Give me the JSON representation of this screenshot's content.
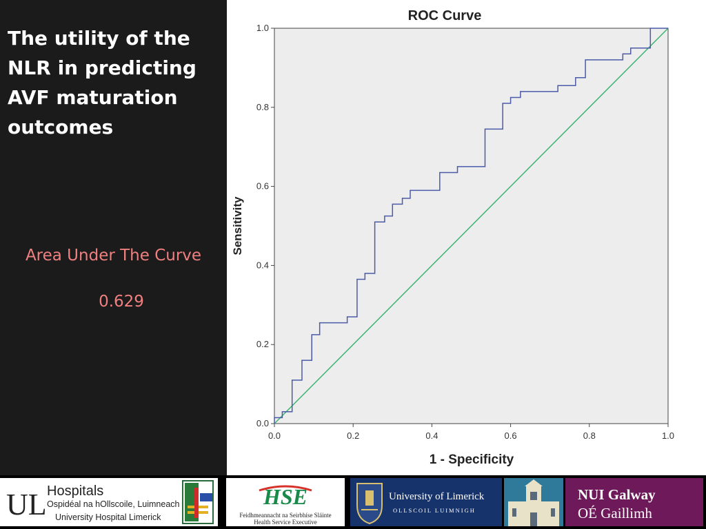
{
  "slide": {
    "title": "The utility of the NLR in predicting AVF maturation outcomes",
    "auc_label": "Area Under The Curve",
    "auc_value": "0.629"
  },
  "colors": {
    "background": "#1b1b1b",
    "title_text": "#ffffff",
    "auc_text": "#f08080",
    "plot_bg": "#ededed",
    "roc_line": "#4a5aa8",
    "reference_line": "#3cb371"
  },
  "chart_data": {
    "type": "line",
    "title": "ROC Curve",
    "xlabel": "1 - Specificity",
    "ylabel": "Sensitivity",
    "xlim": [
      0,
      1
    ],
    "ylim": [
      0,
      1
    ],
    "xticks": [
      "0.0",
      "0.2",
      "0.4",
      "0.6",
      "0.8",
      "1.0"
    ],
    "yticks": [
      "0.0",
      "0.2",
      "0.4",
      "0.6",
      "0.8",
      "1.0"
    ],
    "grid": false,
    "series": [
      {
        "role": "roc-curve",
        "x": [
          0,
          0,
          0.02,
          0.02,
          0.045,
          0.045,
          0.07,
          0.07,
          0.095,
          0.095,
          0.115,
          0.115,
          0.185,
          0.185,
          0.21,
          0.21,
          0.23,
          0.23,
          0.255,
          0.255,
          0.28,
          0.28,
          0.3,
          0.3,
          0.325,
          0.325,
          0.345,
          0.345,
          0.42,
          0.42,
          0.465,
          0.465,
          0.535,
          0.535,
          0.58,
          0.58,
          0.6,
          0.6,
          0.625,
          0.625,
          0.72,
          0.72,
          0.765,
          0.765,
          0.79,
          0.79,
          0.885,
          0.885,
          0.905,
          0.905,
          0.955,
          0.955,
          1.0
        ],
        "y": [
          0,
          0.015,
          0.015,
          0.03,
          0.03,
          0.11,
          0.11,
          0.16,
          0.16,
          0.225,
          0.225,
          0.255,
          0.255,
          0.27,
          0.27,
          0.365,
          0.365,
          0.38,
          0.38,
          0.51,
          0.51,
          0.525,
          0.525,
          0.555,
          0.555,
          0.57,
          0.57,
          0.59,
          0.59,
          0.635,
          0.635,
          0.65,
          0.65,
          0.745,
          0.745,
          0.81,
          0.81,
          0.825,
          0.825,
          0.84,
          0.84,
          0.855,
          0.855,
          0.875,
          0.875,
          0.92,
          0.92,
          0.935,
          0.935,
          0.95,
          0.95,
          1.0,
          1.0
        ]
      },
      {
        "role": "reference-line",
        "x": [
          0,
          1
        ],
        "y": [
          0,
          1
        ]
      }
    ]
  },
  "footer": {
    "ul_hospitals": {
      "letters": "UL",
      "title": "Hospitals",
      "line1": "Ospidéal na hOllscoile, Luimneach",
      "line2": "University Hospital Limerick"
    },
    "hse": {
      "mark": "HSE",
      "line1": "Feidhmeannacht na Seirbhíse Sláinte",
      "line2": "Health Service Executive"
    },
    "uni_limerick": {
      "name": "University of Limerick",
      "sub": "OLLSCOIL LUIMNIGH"
    },
    "nui_galway": {
      "line1": "NUI Galway",
      "line2": "OÉ Gaillimh"
    }
  }
}
